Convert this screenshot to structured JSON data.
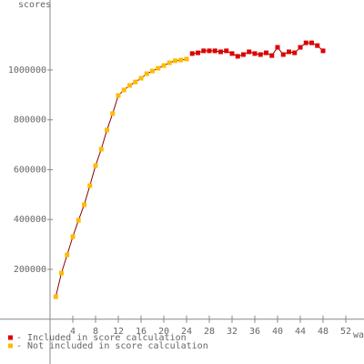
{
  "chart_data": {
    "type": "line",
    "y_label": "scores",
    "x_label": "wa",
    "xlim": [
      -8.8,
      55.2
    ],
    "ylim": [
      0,
      1281000
    ],
    "xticks": [
      4,
      8,
      12,
      16,
      20,
      24,
      28,
      32,
      36,
      40,
      44,
      48,
      52
    ],
    "yticks": [
      200000,
      400000,
      600000,
      800000,
      1000000
    ],
    "line_color": "#8b0000",
    "legend": "bottom-left",
    "series": [
      {
        "name": "- Included in score calculation",
        "color": "#dd0000",
        "x": [
          25,
          26,
          27,
          28,
          29,
          30,
          31,
          32,
          33,
          34,
          35,
          36,
          37,
          38,
          39,
          40,
          41,
          42,
          43,
          44,
          45,
          46,
          47,
          48
        ],
        "values": [
          1066000,
          1069000,
          1077000,
          1077000,
          1077000,
          1073000,
          1077000,
          1066000,
          1055000,
          1062000,
          1073000,
          1066000,
          1062000,
          1069000,
          1058000,
          1091000,
          1062000,
          1073000,
          1069000,
          1091000,
          1109000,
          1109000,
          1098000,
          1077000
        ]
      },
      {
        "name": "- Not included in score calculation",
        "color": "#ffbb00",
        "x": [
          1,
          2,
          3,
          4,
          5,
          6,
          7,
          8,
          9,
          10,
          11,
          12,
          13,
          14,
          15,
          16,
          17,
          18,
          19,
          20,
          21,
          22,
          23,
          24
        ],
        "values": [
          90000,
          185000,
          258000,
          331000,
          397000,
          459000,
          536000,
          616000,
          682000,
          759000,
          825000,
          898000,
          920000,
          938000,
          952000,
          967000,
          985000,
          996000,
          1007000,
          1018000,
          1029000,
          1037000,
          1040000,
          1044000
        ]
      }
    ]
  }
}
